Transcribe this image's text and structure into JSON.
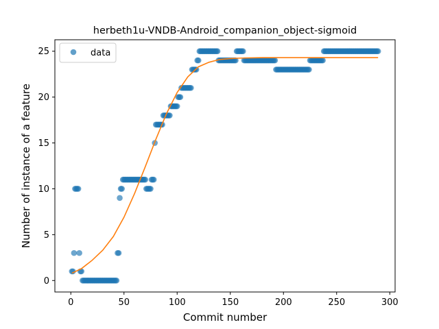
{
  "chart_data": {
    "type": "scatter",
    "title": "herbeth1u-VNDB-Android_companion_object-sigmoid",
    "xlabel": "Commit number",
    "ylabel": "Number of instance of a feature",
    "xlim": [
      -15,
      305
    ],
    "ylim": [
      -1.25,
      26.25
    ],
    "xticks": [
      0,
      50,
      100,
      150,
      200,
      250,
      300
    ],
    "yticks": [
      0,
      5,
      10,
      15,
      20,
      25
    ],
    "grid": false,
    "legend": {
      "placement": "top-left"
    },
    "colors": {
      "data": "#1f77b4",
      "fit": "#ff7f0e"
    },
    "series": [
      {
        "name": "data",
        "kind": "scatter",
        "points": [
          [
            1,
            1
          ],
          [
            2,
            1
          ],
          [
            3,
            3
          ],
          [
            4,
            10
          ],
          [
            5,
            10
          ],
          [
            6,
            10
          ],
          [
            7,
            10
          ],
          [
            8,
            3
          ],
          [
            9,
            1
          ],
          [
            10,
            1
          ],
          [
            11,
            0
          ],
          [
            12,
            0
          ],
          [
            13,
            0
          ],
          [
            14,
            0
          ],
          [
            15,
            0
          ],
          [
            16,
            0
          ],
          [
            17,
            0
          ],
          [
            18,
            0
          ],
          [
            19,
            0
          ],
          [
            20,
            0
          ],
          [
            21,
            0
          ],
          [
            22,
            0
          ],
          [
            23,
            0
          ],
          [
            24,
            0
          ],
          [
            25,
            0
          ],
          [
            26,
            0
          ],
          [
            27,
            0
          ],
          [
            28,
            0
          ],
          [
            29,
            0
          ],
          [
            30,
            0
          ],
          [
            31,
            0
          ],
          [
            32,
            0
          ],
          [
            33,
            0
          ],
          [
            34,
            0
          ],
          [
            35,
            0
          ],
          [
            36,
            0
          ],
          [
            37,
            0
          ],
          [
            38,
            0
          ],
          [
            39,
            0
          ],
          [
            40,
            0
          ],
          [
            41,
            0
          ],
          [
            42,
            0
          ],
          [
            43,
            0
          ],
          [
            44,
            3
          ],
          [
            45,
            3
          ],
          [
            46,
            9
          ],
          [
            47,
            10
          ],
          [
            48,
            10
          ],
          [
            49,
            11
          ],
          [
            50,
            11
          ],
          [
            51,
            11
          ],
          [
            52,
            11
          ],
          [
            53,
            11
          ],
          [
            54,
            11
          ],
          [
            55,
            11
          ],
          [
            56,
            11
          ],
          [
            57,
            11
          ],
          [
            58,
            11
          ],
          [
            59,
            11
          ],
          [
            60,
            11
          ],
          [
            61,
            11
          ],
          [
            62,
            11
          ],
          [
            63,
            11
          ],
          [
            64,
            11
          ],
          [
            65,
            11
          ],
          [
            66,
            11
          ],
          [
            67,
            11
          ],
          [
            68,
            11
          ],
          [
            69,
            11
          ],
          [
            70,
            11
          ],
          [
            71,
            10
          ],
          [
            72,
            10
          ],
          [
            73,
            10
          ],
          [
            74,
            10
          ],
          [
            75,
            10
          ],
          [
            76,
            11
          ],
          [
            77,
            11
          ],
          [
            78,
            11
          ],
          [
            79,
            15
          ],
          [
            80,
            17
          ],
          [
            81,
            17
          ],
          [
            82,
            17
          ],
          [
            83,
            17
          ],
          [
            84,
            17
          ],
          [
            85,
            17
          ],
          [
            86,
            17
          ],
          [
            87,
            18
          ],
          [
            88,
            18
          ],
          [
            89,
            18
          ],
          [
            90,
            18
          ],
          [
            91,
            18
          ],
          [
            92,
            18
          ],
          [
            93,
            18
          ],
          [
            94,
            19
          ],
          [
            95,
            19
          ],
          [
            96,
            19
          ],
          [
            97,
            19
          ],
          [
            98,
            19
          ],
          [
            99,
            19
          ],
          [
            100,
            19
          ],
          [
            101,
            20
          ],
          [
            102,
            20
          ],
          [
            103,
            20
          ],
          [
            104,
            21
          ],
          [
            105,
            21
          ],
          [
            106,
            21
          ],
          [
            107,
            21
          ],
          [
            108,
            21
          ],
          [
            109,
            21
          ],
          [
            110,
            21
          ],
          [
            111,
            21
          ],
          [
            112,
            21
          ],
          [
            113,
            21
          ],
          [
            114,
            23
          ],
          [
            115,
            23
          ],
          [
            116,
            23
          ],
          [
            117,
            23
          ],
          [
            118,
            23
          ],
          [
            119,
            24
          ],
          [
            120,
            24
          ],
          [
            121,
            25
          ],
          [
            122,
            25
          ],
          [
            123,
            25
          ],
          [
            124,
            25
          ],
          [
            125,
            25
          ],
          [
            126,
            25
          ],
          [
            127,
            25
          ],
          [
            128,
            25
          ],
          [
            129,
            25
          ],
          [
            130,
            25
          ],
          [
            131,
            25
          ],
          [
            132,
            25
          ],
          [
            133,
            25
          ],
          [
            134,
            25
          ],
          [
            135,
            25
          ],
          [
            136,
            25
          ],
          [
            137,
            25
          ],
          [
            138,
            25
          ],
          [
            139,
            24
          ],
          [
            140,
            24
          ],
          [
            141,
            24
          ],
          [
            142,
            24
          ],
          [
            143,
            24
          ],
          [
            144,
            24
          ],
          [
            145,
            24
          ],
          [
            146,
            24
          ],
          [
            147,
            24
          ],
          [
            148,
            24
          ],
          [
            149,
            24
          ],
          [
            150,
            24
          ],
          [
            151,
            24
          ],
          [
            152,
            24
          ],
          [
            153,
            24
          ],
          [
            154,
            24
          ],
          [
            155,
            24
          ],
          [
            156,
            25
          ],
          [
            157,
            25
          ],
          [
            158,
            25
          ],
          [
            159,
            25
          ],
          [
            160,
            25
          ],
          [
            161,
            25
          ],
          [
            162,
            25
          ],
          [
            163,
            24
          ],
          [
            164,
            24
          ],
          [
            165,
            24
          ],
          [
            166,
            24
          ],
          [
            167,
            24
          ],
          [
            168,
            24
          ],
          [
            169,
            24
          ],
          [
            170,
            24
          ],
          [
            171,
            24
          ],
          [
            172,
            24
          ],
          [
            173,
            24
          ],
          [
            174,
            24
          ],
          [
            175,
            24
          ],
          [
            176,
            24
          ],
          [
            177,
            24
          ],
          [
            178,
            24
          ],
          [
            179,
            24
          ],
          [
            180,
            24
          ],
          [
            181,
            24
          ],
          [
            182,
            24
          ],
          [
            183,
            24
          ],
          [
            184,
            24
          ],
          [
            185,
            24
          ],
          [
            186,
            24
          ],
          [
            187,
            24
          ],
          [
            188,
            24
          ],
          [
            189,
            24
          ],
          [
            190,
            24
          ],
          [
            191,
            24
          ],
          [
            192,
            24
          ],
          [
            193,
            23
          ],
          [
            194,
            23
          ],
          [
            195,
            23
          ],
          [
            196,
            23
          ],
          [
            197,
            23
          ],
          [
            198,
            23
          ],
          [
            199,
            23
          ],
          [
            200,
            23
          ],
          [
            201,
            23
          ],
          [
            202,
            23
          ],
          [
            203,
            23
          ],
          [
            204,
            23
          ],
          [
            205,
            23
          ],
          [
            206,
            23
          ],
          [
            207,
            23
          ],
          [
            208,
            23
          ],
          [
            209,
            23
          ],
          [
            210,
            23
          ],
          [
            211,
            23
          ],
          [
            212,
            23
          ],
          [
            213,
            23
          ],
          [
            214,
            23
          ],
          [
            215,
            23
          ],
          [
            216,
            23
          ],
          [
            217,
            23
          ],
          [
            218,
            23
          ],
          [
            219,
            23
          ],
          [
            220,
            23
          ],
          [
            221,
            23
          ],
          [
            222,
            23
          ],
          [
            223,
            23
          ],
          [
            224,
            23
          ],
          [
            225,
            24
          ],
          [
            226,
            24
          ],
          [
            227,
            24
          ],
          [
            228,
            24
          ],
          [
            229,
            24
          ],
          [
            230,
            24
          ],
          [
            231,
            24
          ],
          [
            232,
            24
          ],
          [
            233,
            24
          ],
          [
            234,
            24
          ],
          [
            235,
            24
          ],
          [
            236,
            24
          ],
          [
            237,
            24
          ],
          [
            238,
            25
          ],
          [
            239,
            25
          ],
          [
            240,
            25
          ],
          [
            241,
            25
          ],
          [
            242,
            25
          ],
          [
            243,
            25
          ],
          [
            244,
            25
          ],
          [
            245,
            25
          ],
          [
            246,
            25
          ],
          [
            247,
            25
          ],
          [
            248,
            25
          ],
          [
            249,
            25
          ],
          [
            250,
            25
          ],
          [
            251,
            25
          ],
          [
            252,
            25
          ],
          [
            253,
            25
          ],
          [
            254,
            25
          ],
          [
            255,
            25
          ],
          [
            256,
            25
          ],
          [
            257,
            25
          ],
          [
            258,
            25
          ],
          [
            259,
            25
          ],
          [
            260,
            25
          ],
          [
            261,
            25
          ],
          [
            262,
            25
          ],
          [
            263,
            25
          ],
          [
            264,
            25
          ],
          [
            265,
            25
          ],
          [
            266,
            25
          ],
          [
            267,
            25
          ],
          [
            268,
            25
          ],
          [
            269,
            25
          ],
          [
            270,
            25
          ],
          [
            271,
            25
          ],
          [
            272,
            25
          ],
          [
            273,
            25
          ],
          [
            274,
            25
          ],
          [
            275,
            25
          ],
          [
            276,
            25
          ],
          [
            277,
            25
          ],
          [
            278,
            25
          ],
          [
            279,
            25
          ],
          [
            280,
            25
          ],
          [
            281,
            25
          ],
          [
            282,
            25
          ],
          [
            283,
            25
          ],
          [
            284,
            25
          ],
          [
            285,
            25
          ],
          [
            286,
            25
          ],
          [
            287,
            25
          ],
          [
            288,
            25
          ],
          [
            289,
            25
          ]
        ]
      },
      {
        "kind": "line",
        "points": [
          [
            1,
            0.8
          ],
          [
            10,
            1.3
          ],
          [
            20,
            2.2
          ],
          [
            30,
            3.3
          ],
          [
            40,
            4.8
          ],
          [
            50,
            6.9
          ],
          [
            60,
            9.5
          ],
          [
            70,
            12.4
          ],
          [
            80,
            15.4
          ],
          [
            90,
            18.2
          ],
          [
            100,
            20.5
          ],
          [
            110,
            22.2
          ],
          [
            120,
            23.3
          ],
          [
            130,
            23.8
          ],
          [
            140,
            24.1
          ],
          [
            150,
            24.2
          ],
          [
            160,
            24.25
          ],
          [
            180,
            24.3
          ],
          [
            200,
            24.3
          ],
          [
            250,
            24.3
          ],
          [
            289,
            24.3
          ]
        ]
      }
    ]
  }
}
